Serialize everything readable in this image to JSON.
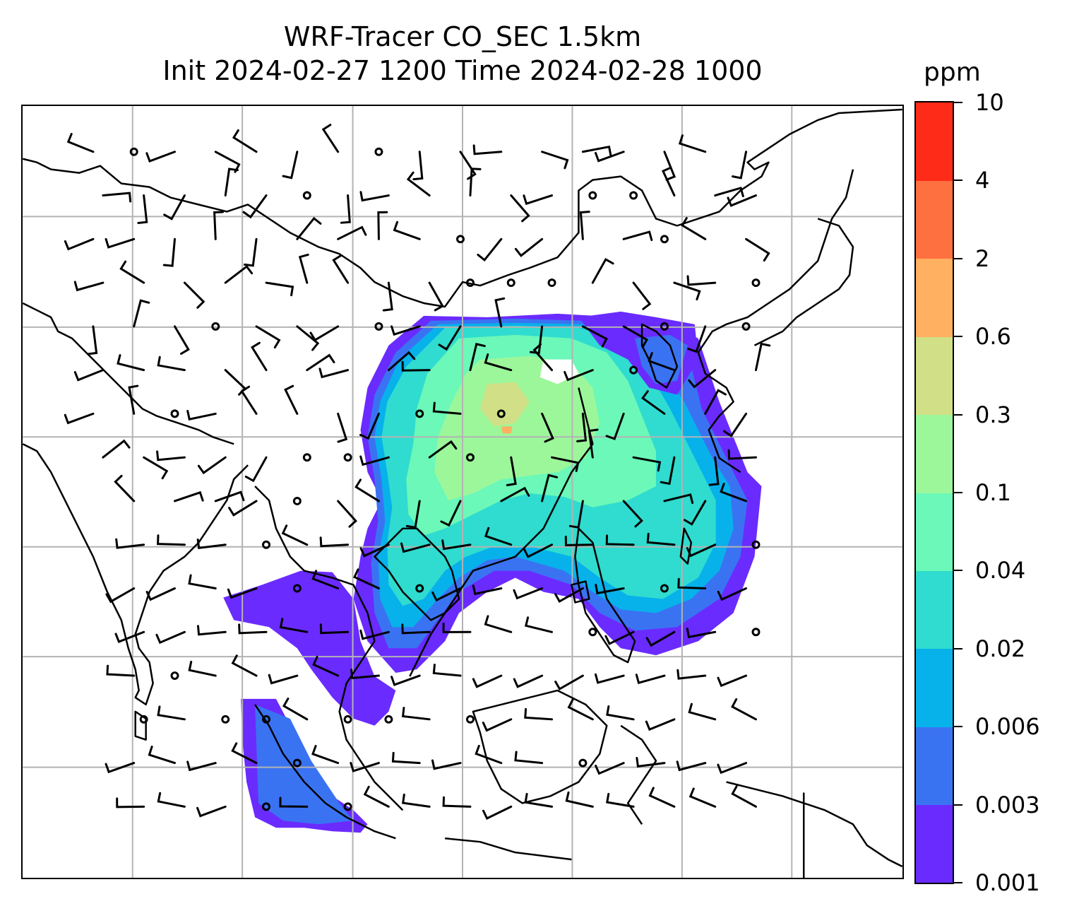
{
  "title": {
    "line1": "WRF-Tracer CO_SEC 1.5km",
    "line2": "Init 2024-02-27 1200 Time 2024-02-28 1000"
  },
  "colorbar": {
    "unit": "ppm",
    "levels": [
      "0.001",
      "0.003",
      "0.006",
      "0.02",
      "0.04",
      "0.1",
      "0.3",
      "0.6",
      "2",
      "4",
      "10"
    ],
    "colors": [
      "#6a2bff",
      "#3a73f2",
      "#07b2ea",
      "#2fdccf",
      "#6bf8b8",
      "#9cf79a",
      "#d1e086",
      "#ffb060",
      "#ff7040",
      "#ff2b19"
    ]
  },
  "map": {
    "gridline_color": "#b3b3b3",
    "coastline_color": "#000000",
    "wind_barb_color": "#000000"
  }
}
